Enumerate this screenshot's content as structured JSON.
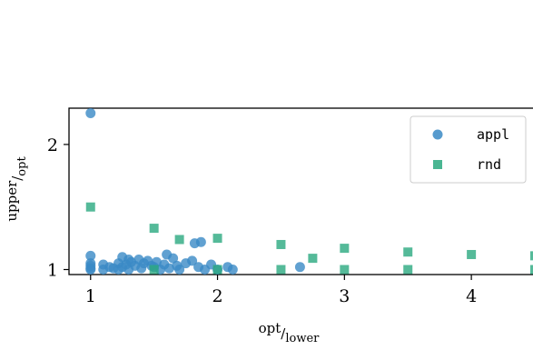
{
  "chart_data": {
    "type": "scatter",
    "title": "",
    "xlabel": {
      "num": "opt",
      "den": "lower"
    },
    "ylabel": {
      "num": "upper",
      "den": "opt"
    },
    "xlim": [
      0.83,
      4.55
    ],
    "ylim": [
      0.96,
      2.29
    ],
    "xticks": [
      1,
      2,
      3,
      4
    ],
    "xtick_labels": [
      "1",
      "2",
      "3",
      "4"
    ],
    "yticks": [
      1,
      2
    ],
    "ytick_labels": [
      "1",
      "2"
    ],
    "grid": false,
    "legend_position": "top-right",
    "series": [
      {
        "name": "appl",
        "marker": "circle",
        "color": "#3a8ac6",
        "points": [
          [
            1.0,
            2.25
          ],
          [
            1.0,
            1.11
          ],
          [
            1.0,
            1.0
          ],
          [
            1.0,
            1.01
          ],
          [
            1.0,
            1.03
          ],
          [
            1.0,
            1.05
          ],
          [
            1.1,
            1.04
          ],
          [
            1.1,
            1.0
          ],
          [
            1.15,
            1.02
          ],
          [
            1.18,
            1.01
          ],
          [
            1.22,
            1.05
          ],
          [
            1.22,
            1.0
          ],
          [
            1.25,
            1.1
          ],
          [
            1.25,
            1.02
          ],
          [
            1.28,
            1.04
          ],
          [
            1.3,
            1.08
          ],
          [
            1.3,
            1.0
          ],
          [
            1.32,
            1.06
          ],
          [
            1.35,
            1.03
          ],
          [
            1.38,
            1.08
          ],
          [
            1.4,
            1.01
          ],
          [
            1.42,
            1.05
          ],
          [
            1.45,
            1.07
          ],
          [
            1.48,
            1.03
          ],
          [
            1.5,
            1.02
          ],
          [
            1.52,
            1.06
          ],
          [
            1.55,
            1.0
          ],
          [
            1.58,
            1.04
          ],
          [
            1.6,
            1.12
          ],
          [
            1.62,
            1.01
          ],
          [
            1.65,
            1.09
          ],
          [
            1.68,
            1.03
          ],
          [
            1.7,
            1.0
          ],
          [
            1.75,
            1.05
          ],
          [
            1.8,
            1.07
          ],
          [
            1.82,
            1.21
          ],
          [
            1.85,
            1.02
          ],
          [
            1.87,
            1.22
          ],
          [
            1.9,
            1.0
          ],
          [
            1.95,
            1.04
          ],
          [
            2.0,
            1.0
          ],
          [
            2.08,
            1.02
          ],
          [
            2.12,
            1.0
          ],
          [
            2.65,
            1.02
          ]
        ]
      },
      {
        "name": "rnd",
        "marker": "square",
        "color": "#2aa97f",
        "points": [
          [
            1.0,
            1.5
          ],
          [
            1.5,
            1.33
          ],
          [
            1.5,
            1.0
          ],
          [
            1.7,
            1.24
          ],
          [
            2.0,
            1.25
          ],
          [
            2.0,
            1.0
          ],
          [
            2.5,
            1.2
          ],
          [
            2.5,
            1.0
          ],
          [
            2.75,
            1.09
          ],
          [
            3.0,
            1.17
          ],
          [
            3.0,
            1.0
          ],
          [
            3.5,
            1.14
          ],
          [
            3.5,
            1.0
          ],
          [
            4.0,
            1.12
          ],
          [
            4.5,
            1.11
          ],
          [
            4.5,
            1.0
          ]
        ]
      }
    ]
  }
}
